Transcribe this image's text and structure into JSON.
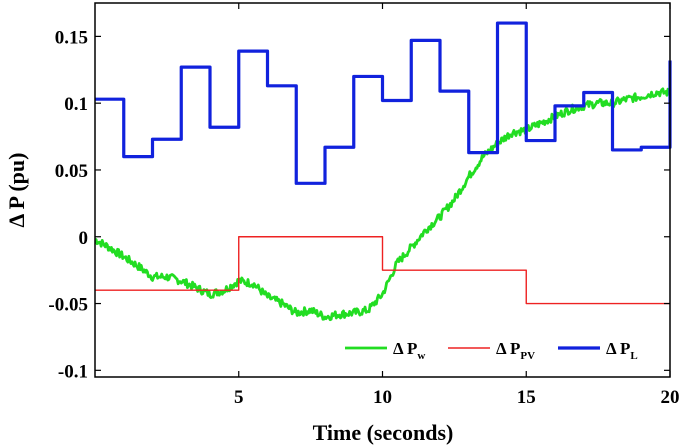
{
  "chart_data": {
    "type": "line",
    "xlabel": "Time (seconds)",
    "ylabel": "Δ P (pu)",
    "xlim": [
      0,
      20
    ],
    "ylim": [
      -0.105,
      0.175
    ],
    "x_ticks": [
      5,
      10,
      15,
      20
    ],
    "y_ticks": [
      -0.1,
      -0.05,
      0,
      0.05,
      0.1,
      0.15
    ],
    "x_tick_labels": [
      "5",
      "10",
      "15",
      "20"
    ],
    "y_tick_labels": [
      "-0.1",
      "-0.05",
      "0",
      "0.05",
      "0.1",
      "0.15"
    ],
    "grid": false,
    "legend_position": "bottom-right",
    "series": [
      {
        "name": "Δ Pw",
        "legend_main": "Δ P",
        "legend_sub": "w",
        "color": "#22dd22",
        "style": "noisy-line",
        "x": [
          0,
          0.5,
          1,
          1.5,
          2,
          2.5,
          3,
          3.5,
          4,
          4.5,
          5,
          5.5,
          6,
          6.5,
          7,
          7.5,
          8,
          8.5,
          9,
          9.5,
          10,
          10.5,
          11,
          11.5,
          12,
          12.5,
          13,
          13.5,
          14,
          14.5,
          15,
          15.5,
          16,
          16.5,
          17,
          17.5,
          18,
          18.5,
          19,
          19.5,
          20
        ],
        "values": [
          -0.002,
          -0.008,
          -0.015,
          -0.022,
          -0.03,
          -0.03,
          -0.033,
          -0.038,
          -0.043,
          -0.04,
          -0.033,
          -0.035,
          -0.045,
          -0.05,
          -0.057,
          -0.055,
          -0.06,
          -0.058,
          -0.057,
          -0.055,
          -0.043,
          -0.02,
          -0.008,
          0.005,
          0.015,
          0.028,
          0.045,
          0.06,
          0.07,
          0.078,
          0.08,
          0.085,
          0.09,
          0.095,
          0.098,
          0.1,
          0.1,
          0.103,
          0.105,
          0.108,
          0.108
        ]
      },
      {
        "name": "Δ PPV",
        "legend_main": "Δ P",
        "legend_sub": "PV",
        "color": "#ee2222",
        "style": "step",
        "x": [
          0,
          5,
          5,
          10,
          10,
          15,
          15,
          20
        ],
        "values": [
          -0.04,
          -0.04,
          0.0,
          0.0,
          -0.025,
          -0.025,
          -0.05,
          -0.05
        ]
      },
      {
        "name": "Δ PL",
        "legend_main": "Δ P",
        "legend_sub": "L",
        "color": "#1122dd",
        "style": "step",
        "x": [
          0,
          1,
          1,
          2,
          2,
          3,
          3,
          4,
          4,
          5,
          5,
          6,
          6,
          7,
          7,
          8,
          8,
          9,
          9,
          10,
          10,
          11,
          11,
          12,
          12,
          13,
          13,
          14,
          14,
          15,
          15,
          16,
          16,
          17,
          17,
          18,
          18,
          19,
          19,
          20,
          20
        ],
        "values": [
          0.103,
          0.103,
          0.06,
          0.06,
          0.073,
          0.073,
          0.127,
          0.127,
          0.082,
          0.082,
          0.139,
          0.139,
          0.113,
          0.113,
          0.04,
          0.04,
          0.067,
          0.067,
          0.12,
          0.12,
          0.102,
          0.102,
          0.147,
          0.147,
          0.109,
          0.109,
          0.063,
          0.063,
          0.16,
          0.16,
          0.072,
          0.072,
          0.098,
          0.098,
          0.108,
          0.108,
          0.065,
          0.065,
          0.067,
          0.067,
          0.132
        ]
      }
    ]
  }
}
